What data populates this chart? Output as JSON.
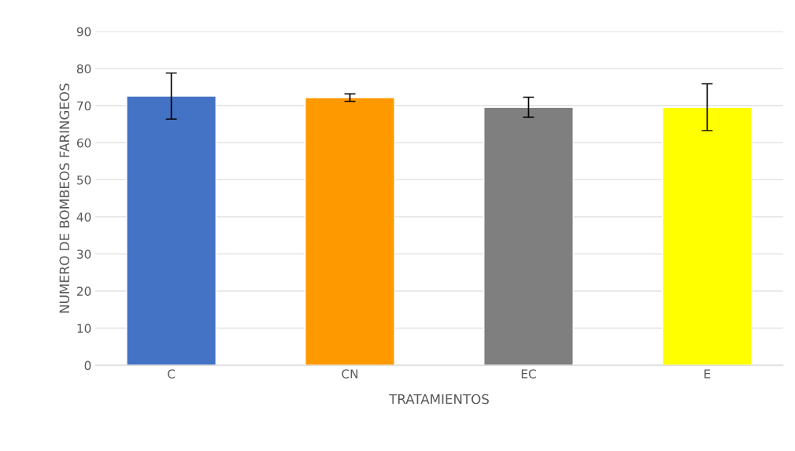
{
  "chart_data": {
    "type": "bar",
    "xlabel": "TRATAMIENTOS",
    "ylabel": "NUMERO DE BOMBEOS FARINGEOS",
    "categories": [
      "C",
      "CN",
      "EC",
      "E"
    ],
    "values": [
      72.6,
      72.2,
      69.6,
      69.6
    ],
    "errors": [
      6.2,
      1.0,
      2.7,
      6.3
    ],
    "colors": [
      "#4472c4",
      "#ff9900",
      "#7f7f7f",
      "#ffff00"
    ],
    "ylim": [
      0,
      90
    ],
    "yticks": [
      0,
      10,
      20,
      30,
      40,
      50,
      60,
      70,
      80,
      90
    ],
    "grid": "y",
    "legend": false
  }
}
